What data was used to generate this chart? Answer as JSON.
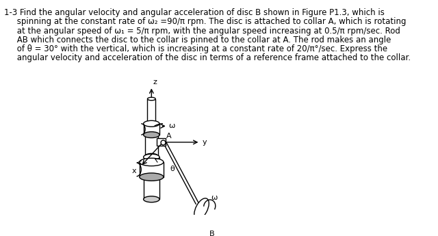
{
  "text_lines": [
    "1-3 Find the angular velocity and angular acceleration of disc B shown in Figure P1.3, which is",
    "     spinning at the constant rate of ω₂ =90/π rpm. The disc is attached to collar A, which is rotating",
    "     at the angular speed of ω₁ = 5/π rpm, with the angular speed increasing at 0.5/π rpm/sec. Rod",
    "     AB which connects the disc to the collar is pinned to the collar at A. The rod makes an angle",
    "     of θ = 30° with the vertical, which is increasing at a constant rate of 20/π°/sec. Express the",
    "     angular velocity and acceleration of the disc in terms of a reference frame attached to the collar."
  ],
  "background_color": "#ffffff",
  "text_color": "#000000",
  "fontsize_text": 8.5
}
